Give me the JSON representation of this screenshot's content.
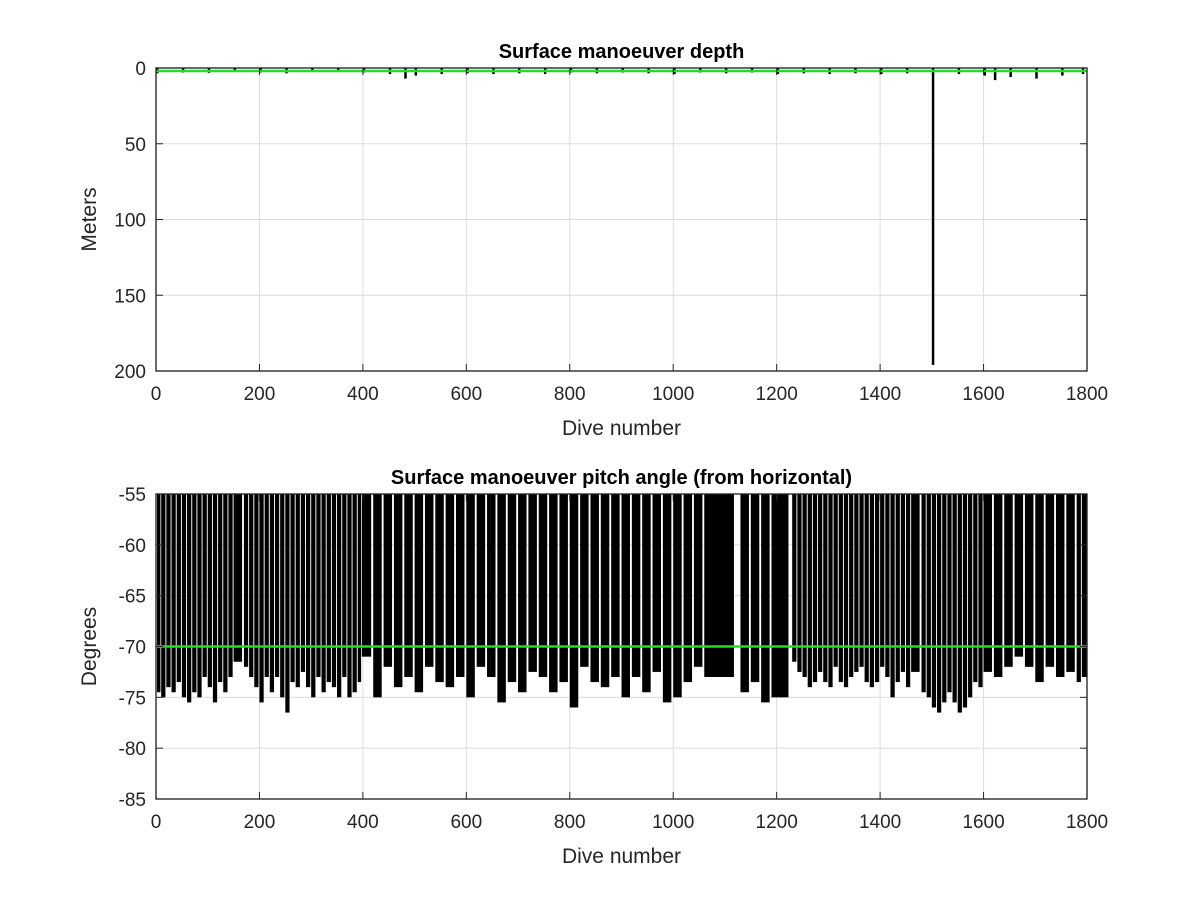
{
  "chart_data": [
    {
      "type": "bar",
      "title": "Surface manoeuver depth",
      "xlabel": "Dive number",
      "ylabel": "Meters",
      "xlim": [
        0,
        1800
      ],
      "ylim": [
        0,
        200
      ],
      "y_reversed": true,
      "grid": true,
      "xticks": [
        "0",
        "200",
        "400",
        "600",
        "800",
        "1000",
        "1200",
        "1400",
        "1600",
        "1800"
      ],
      "yticks": [
        "0",
        "50",
        "100",
        "150",
        "200"
      ],
      "bar_color": "#000000",
      "reference_line": {
        "value": 2,
        "color": "#22dd22"
      },
      "x": [
        0,
        50,
        100,
        150,
        200,
        250,
        300,
        350,
        400,
        450,
        480,
        500,
        550,
        600,
        650,
        700,
        750,
        800,
        850,
        900,
        950,
        1000,
        1050,
        1100,
        1150,
        1200,
        1250,
        1300,
        1350,
        1400,
        1450,
        1500,
        1550,
        1600,
        1620,
        1650,
        1700,
        1750,
        1790
      ],
      "values": [
        3.5,
        3.0,
        3.2,
        2.5,
        3.0,
        3.5,
        2.0,
        2.5,
        3.0,
        4.0,
        7.0,
        5.0,
        4.0,
        3.5,
        4.0,
        3.5,
        4.0,
        3.0,
        3.5,
        3.0,
        3.5,
        4.0,
        3.0,
        3.5,
        3.0,
        4.0,
        3.5,
        4.0,
        3.5,
        4.0,
        3.5,
        196.0,
        4.0,
        5.0,
        8.0,
        6.0,
        7.0,
        5.0,
        4.0
      ]
    },
    {
      "type": "bar",
      "title": "Surface manoeuver pitch angle (from horizontal)",
      "xlabel": "Dive number",
      "ylabel": "Degrees",
      "xlim": [
        0,
        1800
      ],
      "ylim": [
        -85,
        -55
      ],
      "grid": true,
      "xticks": [
        "0",
        "200",
        "400",
        "600",
        "800",
        "1000",
        "1200",
        "1400",
        "1600",
        "1800"
      ],
      "yticks": [
        "-55",
        "-60",
        "-65",
        "-70",
        "-75",
        "-80",
        "-85"
      ],
      "bar_color": "#000000",
      "reference_line": {
        "value": -70,
        "color": "#22dd22"
      },
      "x": [
        2,
        10,
        20,
        30,
        40,
        50,
        60,
        70,
        80,
        90,
        100,
        110,
        120,
        130,
        140,
        150,
        170,
        180,
        190,
        200,
        210,
        220,
        230,
        240,
        250,
        260,
        270,
        280,
        290,
        300,
        310,
        320,
        330,
        340,
        350,
        360,
        370,
        380,
        390,
        398,
        420,
        440,
        460,
        480,
        500,
        520,
        540,
        560,
        580,
        600,
        620,
        640,
        660,
        680,
        700,
        720,
        740,
        760,
        780,
        800,
        820,
        840,
        860,
        880,
        900,
        920,
        940,
        960,
        980,
        1000,
        1020,
        1040,
        1060,
        1130,
        1150,
        1170,
        1190,
        1230,
        1240,
        1250,
        1260,
        1270,
        1280,
        1290,
        1300,
        1310,
        1320,
        1330,
        1340,
        1350,
        1360,
        1370,
        1380,
        1390,
        1400,
        1410,
        1420,
        1430,
        1440,
        1450,
        1460,
        1480,
        1490,
        1500,
        1510,
        1520,
        1530,
        1540,
        1550,
        1560,
        1570,
        1580,
        1590,
        1600,
        1620,
        1640,
        1660,
        1680,
        1700,
        1720,
        1740,
        1760,
        1780,
        1790
      ],
      "values": [
        -74.5,
        -75.0,
        -74.0,
        -74.5,
        -73.5,
        -75.0,
        -75.5,
        -74.5,
        -75.0,
        -73.0,
        -74.0,
        -75.5,
        -73.5,
        -74.5,
        -73.0,
        -71.5,
        -72.0,
        -73.0,
        -74.0,
        -75.5,
        -73.0,
        -74.5,
        -73.0,
        -75.0,
        -76.5,
        -73.5,
        -74.0,
        -72.5,
        -74.0,
        -75.0,
        -73.0,
        -74.5,
        -73.5,
        -74.0,
        -75.0,
        -73.0,
        -75.0,
        -74.5,
        -73.5,
        -71.0,
        -75.0,
        -72.0,
        -74.0,
        -73.0,
        -74.5,
        -72.0,
        -73.5,
        -74.0,
        -73.0,
        -75.0,
        -72.0,
        -73.0,
        -75.5,
        -73.5,
        -74.5,
        -72.5,
        -73.0,
        -74.5,
        -73.5,
        -76.0,
        -72.0,
        -73.5,
        -74.0,
        -73.0,
        -75.0,
        -73.0,
        -74.5,
        -72.5,
        -75.5,
        -75.0,
        -73.5,
        -72.0,
        -73.0,
        -74.5,
        -73.5,
        -75.5,
        -75.0,
        -71.5,
        -72.5,
        -73.0,
        -74.0,
        -73.5,
        -72.5,
        -73.5,
        -74.0,
        -72.0,
        -73.5,
        -74.0,
        -73.0,
        -72.5,
        -72.0,
        -73.5,
        -74.0,
        -73.5,
        -72.0,
        -73.0,
        -75.0,
        -73.5,
        -72.5,
        -74.0,
        -72.5,
        -74.5,
        -75.0,
        -76.0,
        -76.5,
        -75.5,
        -74.5,
        -75.5,
        -76.5,
        -76.0,
        -75.0,
        -73.5,
        -74.0,
        -72.5,
        -73.0,
        -72.0,
        -71.0,
        -72.0,
        -73.5,
        -72.0,
        -73.0,
        -72.5,
        -73.5,
        -73.0
      ]
    }
  ]
}
